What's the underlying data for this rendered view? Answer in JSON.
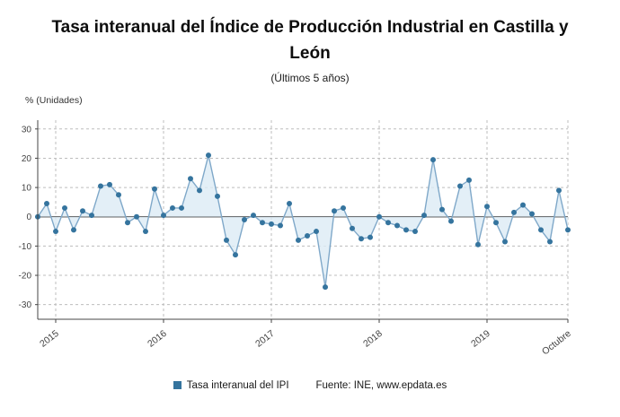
{
  "chart_data": {
    "type": "line",
    "title": "Tasa interanual del Índice de Producción Industrial en Castilla y León",
    "subtitle": "(Últimos 5 años)",
    "unit_label": "% (Unidades)",
    "legend_label": "Tasa interanual del IPI",
    "source": "Fuente: INE, www.epdata.es",
    "ylim": [
      -30,
      30
    ],
    "yticks": [
      -30,
      -20,
      -10,
      0,
      10,
      20,
      30
    ],
    "x_tick_labels": [
      "2015",
      "2016",
      "2017",
      "2018",
      "2019",
      "Octubre"
    ],
    "x_tick_positions": [
      2,
      14,
      26,
      38,
      50,
      59
    ],
    "grid": "dashed",
    "legend_position": "bottom-center",
    "series": [
      {
        "name": "Tasa interanual del IPI",
        "values": [
          0,
          4.5,
          -5,
          3,
          -4.5,
          2,
          0.5,
          10.5,
          11,
          7.5,
          -2,
          0,
          -5,
          9.5,
          0.5,
          3,
          3,
          13,
          9,
          21,
          7,
          -8,
          -13,
          -1,
          0.5,
          -2,
          -2.5,
          -3,
          4.5,
          -8,
          -6.5,
          -5,
          -24,
          2,
          3,
          -4,
          -7.5,
          -7,
          0,
          -2,
          -3,
          -4.5,
          -5,
          0.5,
          19.5,
          2.5,
          -1.5,
          10.5,
          12.5,
          -9.5,
          3.5,
          -2,
          -8.5,
          1.5,
          4,
          1,
          -4.5,
          -8.5,
          9,
          -4.5
        ]
      }
    ],
    "colors": {
      "line": "#7fa8c9",
      "marker": "#35749e",
      "area": "#dcebf5",
      "grid": "#bdbdbd",
      "axis": "#444444",
      "zero_line": "#333333",
      "tick_text": "#444444"
    }
  }
}
